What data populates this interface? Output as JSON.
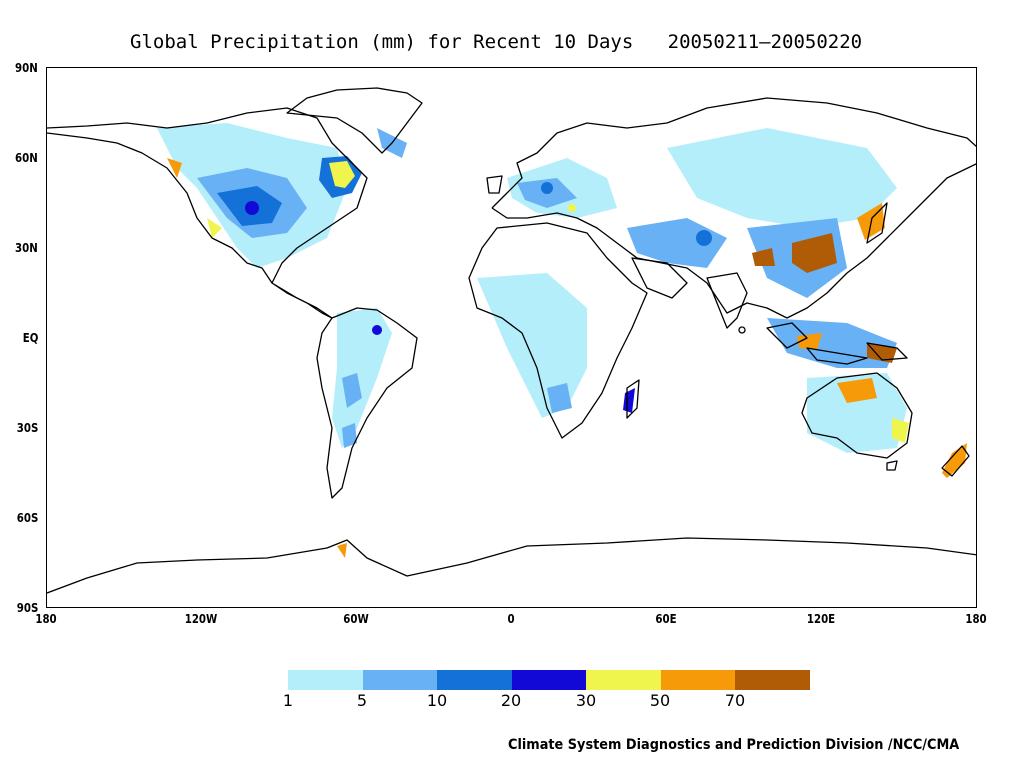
{
  "title": "Global Precipitation (mm) for Recent 10 Days   20050211—20050220",
  "footer": "Climate System Diagnostics and Prediction Division /NCC/CMA",
  "lat_labels": [
    "90N",
    "60N",
    "30N",
    "EQ",
    "30S",
    "60S",
    "90S"
  ],
  "lon_labels": [
    "180",
    "120W",
    "60W",
    "0",
    "60E",
    "120E",
    "180"
  ],
  "legend": {
    "labels": [
      "1",
      "5",
      "10",
      "20",
      "30",
      "50",
      "70"
    ],
    "colors": [
      "#b4eefa",
      "#68b1f5",
      "#1471d8",
      "#1309d6",
      "#f0f54e",
      "#f79a0a",
      "#b05b06"
    ]
  },
  "chart_data": {
    "type": "heatmap",
    "variable": "Global Precipitation (mm)",
    "period": "20050211—20050220",
    "xlim": [
      -180,
      180
    ],
    "ylim": [
      -90,
      90
    ],
    "colorbar_bounds": [
      1,
      5,
      10,
      20,
      30,
      50,
      70
    ],
    "precip_regions": [
      {
        "region": "western North America",
        "level": "5-20"
      },
      {
        "region": "eastern Canada / Hudson Bay",
        "level": "30-50"
      },
      {
        "region": "southeastern United States",
        "level": "10-20"
      },
      {
        "region": "Amazon / central South America",
        "level": "5-20"
      },
      {
        "region": "southern Africa / Madagascar",
        "level": "5-30"
      },
      {
        "region": "Europe",
        "level": "10-20"
      },
      {
        "region": "Middle East / Iran",
        "level": "10-20"
      },
      {
        "region": "southern China",
        "level": ">70"
      },
      {
        "region": "Maritime Continent / New Guinea",
        "level": ">70"
      },
      {
        "region": "northern Australia",
        "level": "30-70"
      },
      {
        "region": "New Zealand",
        "level": "50-70"
      },
      {
        "region": "Japan",
        "level": "30-50"
      }
    ]
  }
}
